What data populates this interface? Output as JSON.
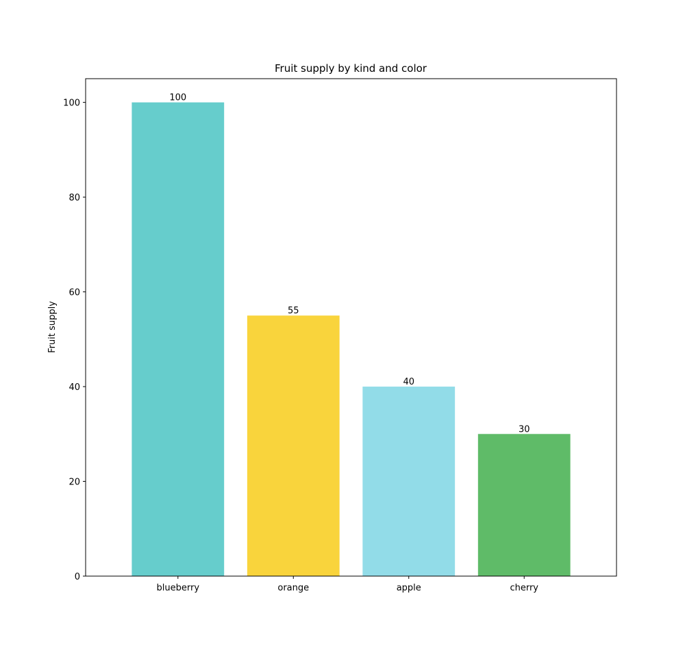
{
  "chart_data": {
    "type": "bar",
    "title": "Fruit supply by kind and color",
    "xlabel": "",
    "ylabel": "Fruit supply",
    "categories": [
      "blueberry",
      "orange",
      "apple",
      "cherry"
    ],
    "values": [
      100,
      55,
      40,
      30
    ],
    "data_labels": [
      "100",
      "55",
      "40",
      "30"
    ],
    "colors": [
      "#66cdcc",
      "#f9d43c",
      "#92dce8",
      "#5fbb68"
    ],
    "ylim": [
      0,
      105
    ],
    "yticks": [
      0,
      20,
      40,
      60,
      80,
      100
    ],
    "ytick_labels": [
      "0",
      "20",
      "40",
      "60",
      "80",
      "100"
    ],
    "grid": false,
    "legend": "none"
  }
}
